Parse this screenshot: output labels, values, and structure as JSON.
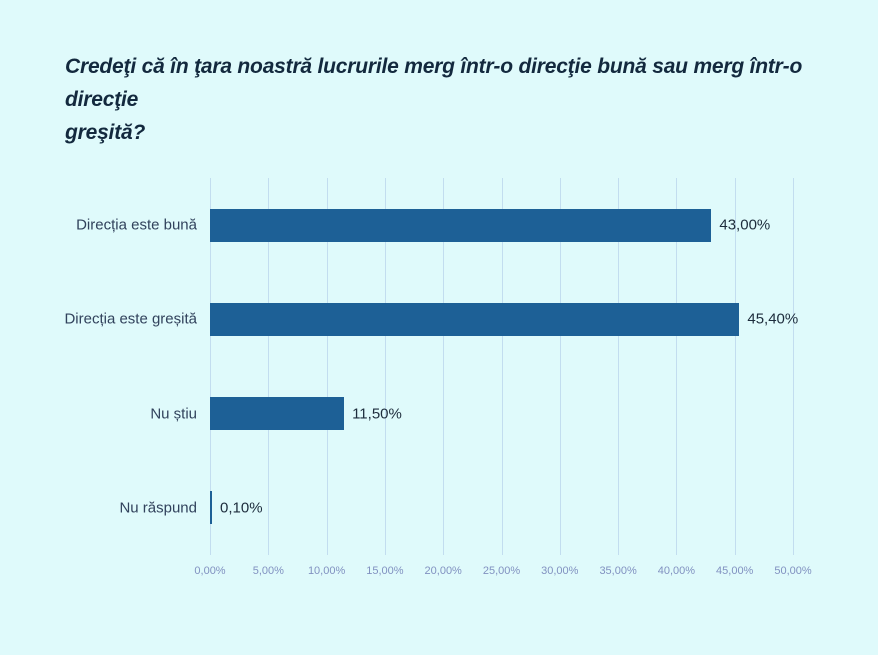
{
  "page": {
    "background_color": "#DFFAFB"
  },
  "title_lines": [
    "Credeţi că în ţara noastră lucrurile merg într-o direcţie bună sau merg într-o direcţie",
    "greşită?"
  ],
  "chart_data": {
    "type": "bar",
    "orientation": "horizontal",
    "title": "Credeţi că în ţara noastră lucrurile merg într-o direcţie bună sau merg într-o direcţie greşită?",
    "categories": [
      "Direcția este bună",
      "Direcția este greșită",
      "Nu știu",
      "Nu răspund"
    ],
    "values": [
      43.0,
      45.4,
      11.5,
      0.1
    ],
    "value_labels": [
      "43,00%",
      "45,40%",
      "11,50%",
      "0,10%"
    ],
    "x_axis": {
      "min": 0,
      "max": 50,
      "tick_step": 5,
      "tick_labels": [
        "0,00%",
        "5,00%",
        "10,00%",
        "15,00%",
        "20,00%",
        "25,00%",
        "30,00%",
        "35,00%",
        "40,00%",
        "45,00%",
        "50,00%"
      ]
    },
    "ylabel": "",
    "xlabel": "",
    "grid": "vertical",
    "legend": "none",
    "colors": {
      "bar": "#1D6096",
      "background": "#DFFAFB",
      "gridline": "#C2DDEF",
      "category_label": "#31425C",
      "value_label": "#1D2C3C",
      "tick_label": "#8191C0",
      "title": "#13293E"
    }
  }
}
